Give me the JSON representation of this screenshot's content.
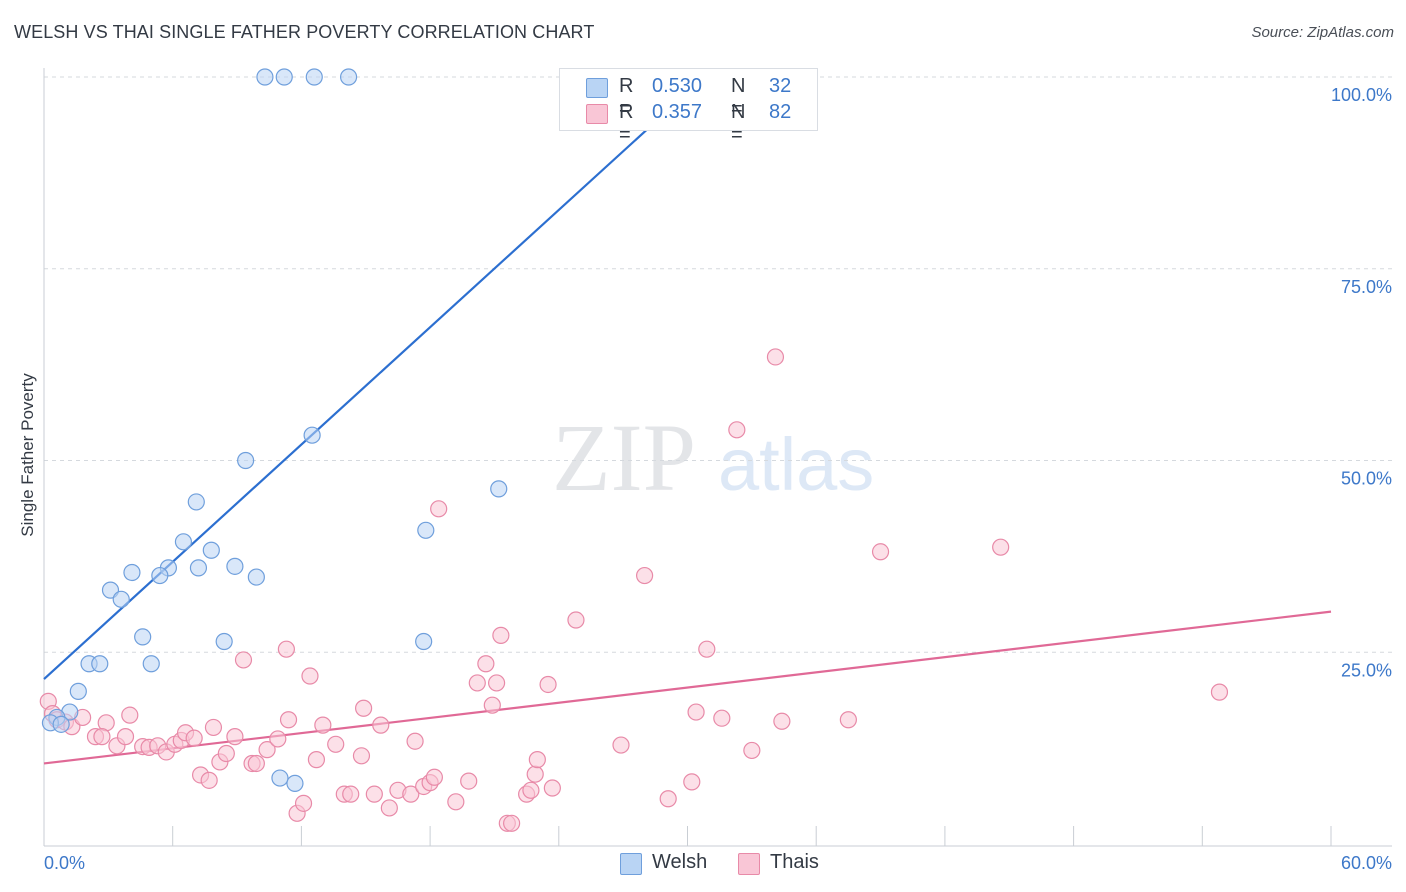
{
  "title": "WELSH VS THAI SINGLE FATHER POVERTY CORRELATION CHART",
  "source": "Source: ZipAtlas.com",
  "watermark": {
    "zip": "ZIP",
    "atlas": "atlas"
  },
  "colors": {
    "welsh_fill": "#b9d4f4",
    "welsh_stroke": "#6f9fdc",
    "welsh_line": "#2c6fd0",
    "thais_fill": "#f9c6d6",
    "thais_stroke": "#e88aa8",
    "thais_line": "#e06996",
    "tick_text": "#3d78c9",
    "grid": "#d5d9de"
  },
  "legend": {
    "rows": [
      {
        "r_key": "R =",
        "r_value": "0.530",
        "n_key": "N =",
        "n_value": "32"
      },
      {
        "r_key": "R =",
        "r_value": "0.357",
        "n_key": "N =",
        "n_value": "82"
      }
    ]
  },
  "bottom_legend": {
    "welsh": "Welsh",
    "thais": "Thais"
  },
  "chart_data": {
    "type": "scatter",
    "title": "WELSH VS THAI SINGLE FATHER POVERTY CORRELATION CHART",
    "xlabel": "",
    "ylabel": "Single Father Poverty",
    "xlim": [
      0,
      60
    ],
    "ylim": [
      0,
      100
    ],
    "x_tick_labels": [
      "0.0%",
      "60.0%"
    ],
    "y_ticks": [
      25,
      50,
      75,
      100
    ],
    "y_tick_labels": [
      "25.0%",
      "50.0%",
      "75.0%",
      "100.0%"
    ],
    "grid": "horizontal dashed",
    "legend_position": "top-center",
    "series": [
      {
        "name": "Welsh",
        "r": 0.53,
        "n": 32,
        "trend": [
          [
            0,
            21.5
          ],
          [
            30.8,
            100
          ]
        ],
        "points": [
          [
            10.3,
            100
          ],
          [
            11.2,
            100
          ],
          [
            12.6,
            100
          ],
          [
            14.2,
            100
          ],
          [
            12.5,
            53.3
          ],
          [
            9.4,
            50.0
          ],
          [
            21.2,
            46.3
          ],
          [
            7.1,
            44.6
          ],
          [
            17.8,
            40.9
          ],
          [
            6.5,
            39.4
          ],
          [
            7.8,
            38.3
          ],
          [
            5.8,
            36.0
          ],
          [
            7.2,
            36.0
          ],
          [
            8.9,
            36.2
          ],
          [
            4.1,
            35.4
          ],
          [
            5.4,
            35.0
          ],
          [
            9.9,
            34.8
          ],
          [
            3.1,
            33.1
          ],
          [
            3.6,
            31.9
          ],
          [
            4.6,
            27.0
          ],
          [
            8.4,
            26.4
          ],
          [
            17.7,
            26.4
          ],
          [
            2.1,
            23.5
          ],
          [
            2.6,
            23.5
          ],
          [
            5.0,
            23.5
          ],
          [
            1.6,
            19.9
          ],
          [
            1.2,
            17.2
          ],
          [
            0.6,
            16.5
          ],
          [
            0.3,
            15.8
          ],
          [
            0.8,
            15.6
          ],
          [
            11.0,
            8.6
          ],
          [
            11.7,
            7.9
          ]
        ]
      },
      {
        "name": "Thais",
        "r": 0.357,
        "n": 82,
        "trend": [
          [
            0,
            10.5
          ],
          [
            60,
            30.3
          ]
        ],
        "points": [
          [
            0.2,
            18.6
          ],
          [
            0.4,
            17.0
          ],
          [
            0.6,
            16.2
          ],
          [
            1.0,
            15.9
          ],
          [
            1.3,
            15.3
          ],
          [
            1.8,
            16.5
          ],
          [
            2.4,
            14.0
          ],
          [
            2.9,
            15.8
          ],
          [
            2.7,
            14.0
          ],
          [
            3.4,
            12.8
          ],
          [
            3.8,
            14.0
          ],
          [
            4.0,
            16.8
          ],
          [
            4.6,
            12.7
          ],
          [
            4.9,
            12.6
          ],
          [
            5.3,
            12.8
          ],
          [
            5.7,
            12.0
          ],
          [
            6.1,
            13.0
          ],
          [
            6.4,
            13.5
          ],
          [
            6.6,
            14.5
          ],
          [
            7.0,
            13.8
          ],
          [
            7.3,
            9.0
          ],
          [
            7.7,
            8.3
          ],
          [
            7.9,
            15.2
          ],
          [
            8.2,
            10.7
          ],
          [
            8.5,
            11.8
          ],
          [
            8.9,
            14.0
          ],
          [
            9.3,
            24.0
          ],
          [
            9.7,
            10.5
          ],
          [
            9.9,
            10.5
          ],
          [
            10.4,
            12.3
          ],
          [
            10.9,
            13.7
          ],
          [
            11.3,
            25.4
          ],
          [
            11.4,
            16.2
          ],
          [
            11.8,
            4.0
          ],
          [
            12.1,
            5.3
          ],
          [
            12.4,
            21.9
          ],
          [
            12.7,
            11.0
          ],
          [
            13.0,
            15.5
          ],
          [
            13.6,
            13.0
          ],
          [
            14.0,
            6.5
          ],
          [
            14.3,
            6.5
          ],
          [
            14.8,
            11.5
          ],
          [
            14.9,
            17.7
          ],
          [
            15.4,
            6.5
          ],
          [
            15.7,
            15.5
          ],
          [
            16.1,
            4.7
          ],
          [
            16.5,
            7.0
          ],
          [
            17.1,
            6.5
          ],
          [
            17.3,
            13.4
          ],
          [
            17.7,
            7.5
          ],
          [
            18.0,
            8.0
          ],
          [
            18.2,
            8.7
          ],
          [
            18.4,
            43.7
          ],
          [
            19.2,
            5.5
          ],
          [
            19.8,
            8.2
          ],
          [
            20.2,
            21.0
          ],
          [
            20.6,
            23.5
          ],
          [
            20.9,
            18.1
          ],
          [
            21.3,
            27.2
          ],
          [
            21.1,
            21.0
          ],
          [
            21.6,
            2.7
          ],
          [
            21.8,
            2.7
          ],
          [
            22.5,
            6.5
          ],
          [
            22.7,
            7.0
          ],
          [
            22.9,
            9.1
          ],
          [
            23.0,
            11.0
          ],
          [
            23.5,
            20.8
          ],
          [
            23.7,
            7.3
          ],
          [
            24.8,
            29.2
          ],
          [
            26.9,
            12.9
          ],
          [
            28.0,
            35.0
          ],
          [
            29.1,
            5.9
          ],
          [
            30.2,
            8.1
          ],
          [
            30.4,
            17.2
          ],
          [
            30.9,
            25.4
          ],
          [
            31.6,
            16.4
          ],
          [
            32.3,
            54.0
          ],
          [
            33.0,
            12.2
          ],
          [
            34.1,
            63.5
          ],
          [
            34.4,
            16.0
          ],
          [
            37.5,
            16.2
          ],
          [
            39.0,
            38.1
          ],
          [
            44.6,
            38.7
          ],
          [
            54.8,
            19.8
          ]
        ]
      }
    ]
  }
}
